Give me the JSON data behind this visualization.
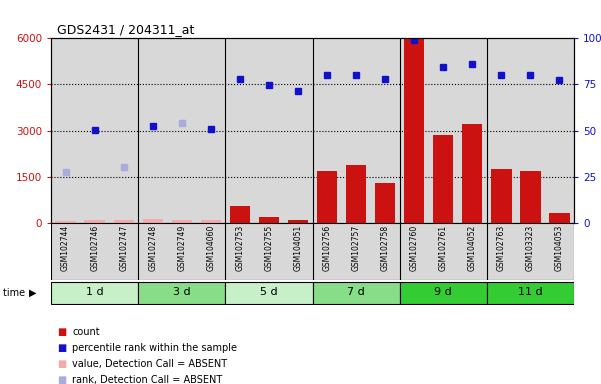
{
  "title": "GDS2431 / 204311_at",
  "samples": [
    "GSM102744",
    "GSM102746",
    "GSM102747",
    "GSM102748",
    "GSM102749",
    "GSM104060",
    "GSM102753",
    "GSM102755",
    "GSM104051",
    "GSM102756",
    "GSM102757",
    "GSM102758",
    "GSM102760",
    "GSM102761",
    "GSM104052",
    "GSM102763",
    "GSM103323",
    "GSM104053"
  ],
  "group_boundaries": [
    0,
    3,
    6,
    9,
    12,
    15,
    18
  ],
  "group_labels": [
    "1 d",
    "3 d",
    "5 d",
    "7 d",
    "9 d",
    "11 d"
  ],
  "group_colors": [
    "#c8f0c8",
    "#88dd88",
    "#c8f0c8",
    "#88dd88",
    "#33cc33",
    "#33cc33"
  ],
  "count_values": [
    55,
    80,
    90,
    120,
    80,
    90,
    550,
    180,
    80,
    1680,
    1870,
    1280,
    5980,
    2850,
    3200,
    1760,
    1680,
    330
  ],
  "count_absent": [
    true,
    true,
    true,
    true,
    true,
    true,
    false,
    false,
    false,
    false,
    false,
    false,
    false,
    false,
    false,
    false,
    false,
    false
  ],
  "percentile_values": [
    1650,
    3020,
    1800,
    3150,
    3250,
    3040,
    4680,
    4480,
    4300,
    4800,
    4820,
    4680,
    5960,
    5080,
    5160,
    4820,
    4820,
    4650
  ],
  "percentile_absent": [
    true,
    false,
    true,
    false,
    true,
    false,
    false,
    false,
    false,
    false,
    false,
    false,
    false,
    false,
    false,
    false,
    false,
    false
  ],
  "ylim_left": [
    0,
    6000
  ],
  "ylim_right": [
    0,
    100
  ],
  "yticks_left": [
    0,
    1500,
    3000,
    4500,
    6000
  ],
  "yticks_right": [
    0,
    25,
    50,
    75,
    100
  ],
  "left_tick_labels": [
    "0",
    "1500",
    "3000",
    "4500",
    "6000"
  ],
  "right_tick_labels": [
    "0",
    "25",
    "50",
    "75",
    "100%"
  ],
  "bar_color_present": "#cc1111",
  "bar_color_absent": "#f5aaaa",
  "dot_color_present": "#1111cc",
  "dot_color_absent": "#aaaadd",
  "sample_bg": "#d8d8d8",
  "legend_items": [
    {
      "color": "#cc1111",
      "label": "count"
    },
    {
      "color": "#1111cc",
      "label": "percentile rank within the sample"
    },
    {
      "color": "#f5aaaa",
      "label": "value, Detection Call = ABSENT"
    },
    {
      "color": "#aaaadd",
      "label": "rank, Detection Call = ABSENT"
    }
  ]
}
